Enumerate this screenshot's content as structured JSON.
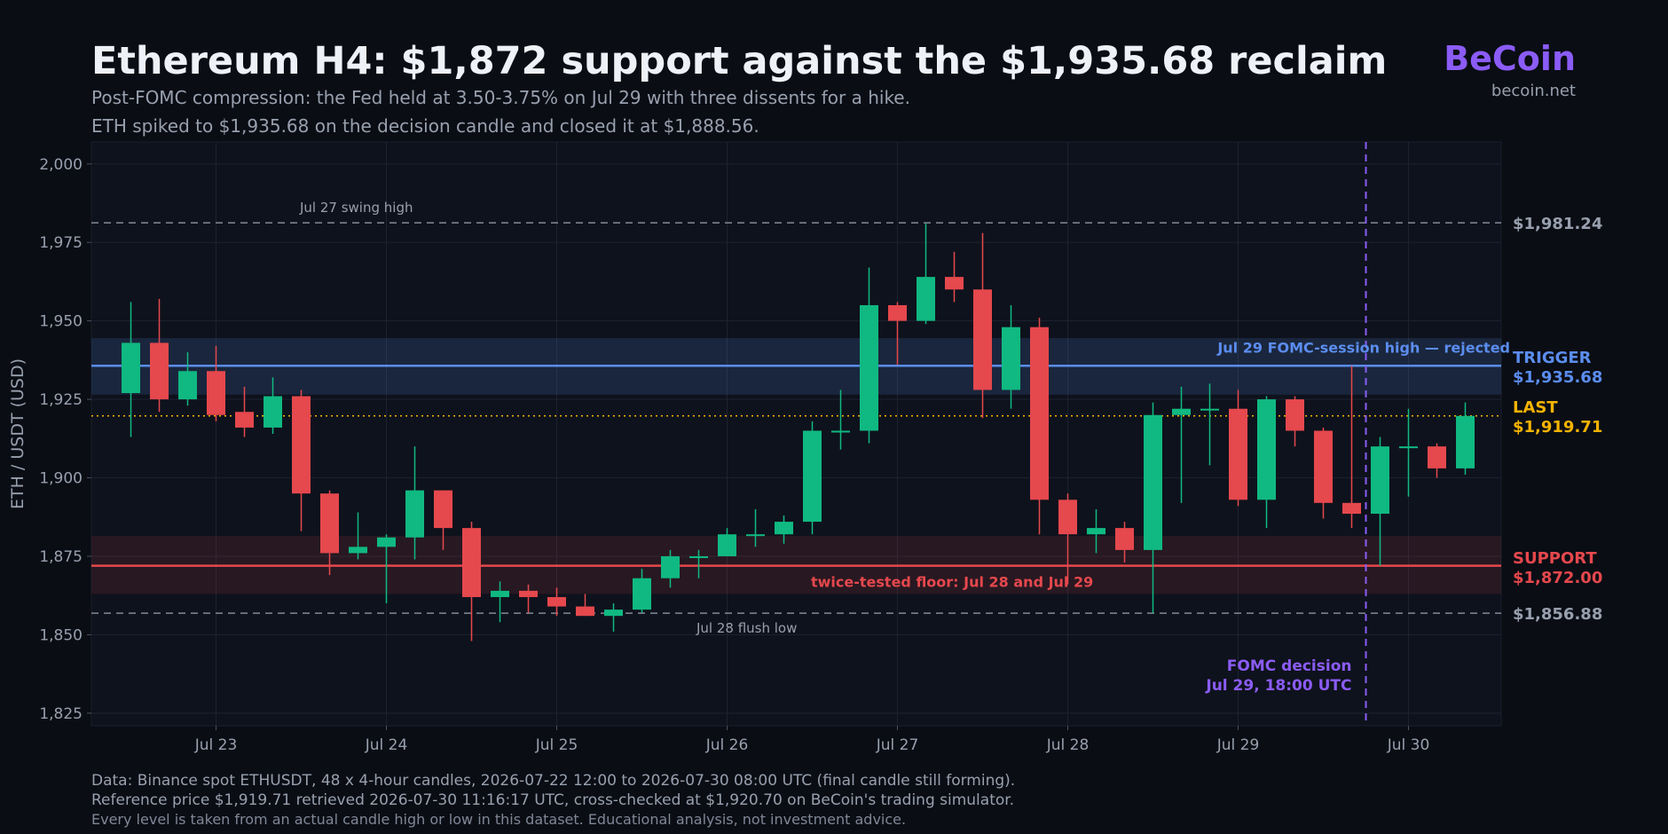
{
  "header": {
    "title": "Ethereum H4: $1,872 support against the $1,935.68 reclaim",
    "subtitle_line1": "Post-FOMC compression: the Fed held at 3.50-3.75% on Jul 29 with three dissents for a hike.",
    "subtitle_line2": "ETH spiked to $1,935.68 on the decision candle and closed it at $1,888.56.",
    "brand": "BeCoin",
    "brand_url": "becoin.net"
  },
  "footer": {
    "line1": "Data: Binance spot ETHUSDT, 48 x 4-hour candles, 2026-07-22 12:00 to 2026-07-30 08:00 UTC (final candle still forming).",
    "line2": "Reference price $1,919.71 retrieved 2026-07-30 11:16:17 UTC, cross-checked at $1,920.70 on BeCoin's trading simulator.",
    "line3": "Every level is taken from an actual candle high or low in this dataset. Educational analysis, not investment advice."
  },
  "colors": {
    "bull": "#10b981",
    "bear": "#e5484d",
    "trigger": "#5b8def",
    "last": "#f5b301",
    "support": "#e5484d",
    "fomc": "#8b5cf6",
    "dashed_level": "#98a0ae"
  },
  "chart_data": {
    "type": "candlestick",
    "ylabel": "ETH / USDT  (USD)",
    "ylim": [
      1821,
      2007
    ],
    "yticks": [
      1825,
      1850,
      1875,
      1900,
      1925,
      1950,
      1975,
      2000
    ],
    "ytick_labels": [
      "1,825",
      "1,850",
      "1,875",
      "1,900",
      "1,925",
      "1,950",
      "1,975",
      "2,000"
    ],
    "x_start": "2026-07-22 12:00",
    "candle_interval_hours": 4,
    "xticks": [
      {
        "index": 3,
        "label": "Jul 23"
      },
      {
        "index": 9,
        "label": "Jul 24"
      },
      {
        "index": 15,
        "label": "Jul 25"
      },
      {
        "index": 21,
        "label": "Jul 26"
      },
      {
        "index": 27,
        "label": "Jul 27"
      },
      {
        "index": 33,
        "label": "Jul 28"
      },
      {
        "index": 39,
        "label": "Jul 29"
      },
      {
        "index": 45,
        "label": "Jul 30"
      }
    ],
    "candles": [
      {
        "o": 1927,
        "h": 1956,
        "l": 1913,
        "c": 1943
      },
      {
        "o": 1943,
        "h": 1957,
        "l": 1921,
        "c": 1925
      },
      {
        "o": 1925,
        "h": 1940,
        "l": 1923,
        "c": 1934
      },
      {
        "o": 1934,
        "h": 1942,
        "l": 1918,
        "c": 1920
      },
      {
        "o": 1921,
        "h": 1929,
        "l": 1913,
        "c": 1916
      },
      {
        "o": 1916,
        "h": 1932,
        "l": 1914,
        "c": 1926
      },
      {
        "o": 1926,
        "h": 1928,
        "l": 1883,
        "c": 1895
      },
      {
        "o": 1895,
        "h": 1896,
        "l": 1869,
        "c": 1876
      },
      {
        "o": 1876,
        "h": 1889,
        "l": 1874,
        "c": 1878
      },
      {
        "o": 1878,
        "h": 1882,
        "l": 1860,
        "c": 1881
      },
      {
        "o": 1881,
        "h": 1910,
        "l": 1874,
        "c": 1896
      },
      {
        "o": 1896,
        "h": 1896,
        "l": 1877,
        "c": 1884
      },
      {
        "o": 1884,
        "h": 1886,
        "l": 1848,
        "c": 1862
      },
      {
        "o": 1862,
        "h": 1867,
        "l": 1854,
        "c": 1864
      },
      {
        "o": 1864,
        "h": 1866,
        "l": 1857,
        "c": 1862
      },
      {
        "o": 1862,
        "h": 1865,
        "l": 1856,
        "c": 1859
      },
      {
        "o": 1859,
        "h": 1863,
        "l": 1856,
        "c": 1856
      },
      {
        "o": 1856,
        "h": 1860,
        "l": 1851,
        "c": 1858
      },
      {
        "o": 1858,
        "h": 1871,
        "l": 1857,
        "c": 1868
      },
      {
        "o": 1868,
        "h": 1877,
        "l": 1865,
        "c": 1875
      },
      {
        "o": 1875,
        "h": 1877,
        "l": 1868,
        "c": 1875
      },
      {
        "o": 1875,
        "h": 1884,
        "l": 1875,
        "c": 1882
      },
      {
        "o": 1882,
        "h": 1890,
        "l": 1878,
        "c": 1882
      },
      {
        "o": 1882,
        "h": 1888,
        "l": 1879,
        "c": 1886
      },
      {
        "o": 1886,
        "h": 1918,
        "l": 1882,
        "c": 1915
      },
      {
        "o": 1915,
        "h": 1928,
        "l": 1909,
        "c": 1915
      },
      {
        "o": 1915,
        "h": 1967,
        "l": 1911,
        "c": 1955
      },
      {
        "o": 1955,
        "h": 1956,
        "l": 1936,
        "c": 1950
      },
      {
        "o": 1950,
        "h": 1981,
        "l": 1949,
        "c": 1964
      },
      {
        "o": 1964,
        "h": 1972,
        "l": 1956,
        "c": 1960
      },
      {
        "o": 1960,
        "h": 1978,
        "l": 1919,
        "c": 1928
      },
      {
        "o": 1928,
        "h": 1955,
        "l": 1922,
        "c": 1948
      },
      {
        "o": 1948,
        "h": 1951,
        "l": 1882,
        "c": 1893
      },
      {
        "o": 1893,
        "h": 1895,
        "l": 1866,
        "c": 1882
      },
      {
        "o": 1882,
        "h": 1890,
        "l": 1876,
        "c": 1884
      },
      {
        "o": 1884,
        "h": 1886,
        "l": 1873,
        "c": 1877
      },
      {
        "o": 1877,
        "h": 1924,
        "l": 1857,
        "c": 1920
      },
      {
        "o": 1920,
        "h": 1929,
        "l": 1892,
        "c": 1922
      },
      {
        "o": 1922,
        "h": 1930,
        "l": 1904,
        "c": 1922
      },
      {
        "o": 1922,
        "h": 1928,
        "l": 1891,
        "c": 1893
      },
      {
        "o": 1893,
        "h": 1926,
        "l": 1884,
        "c": 1925
      },
      {
        "o": 1925,
        "h": 1926,
        "l": 1910,
        "c": 1915
      },
      {
        "o": 1915,
        "h": 1916,
        "l": 1887,
        "c": 1892
      },
      {
        "o": 1892,
        "h": 1935.68,
        "l": 1884,
        "c": 1888.56
      },
      {
        "o": 1888.56,
        "h": 1913,
        "l": 1872,
        "c": 1910
      },
      {
        "o": 1910,
        "h": 1922,
        "l": 1894,
        "c": 1910
      },
      {
        "o": 1910,
        "h": 1911,
        "l": 1900,
        "c": 1903
      },
      {
        "o": 1903,
        "h": 1924,
        "l": 1901,
        "c": 1919.71
      }
    ],
    "levels": {
      "swing_high": {
        "value": 1981.24,
        "label": "$1,981.24",
        "note": "Jul 27 swing high"
      },
      "trigger": {
        "value": 1935.68,
        "tag": "TRIGGER",
        "label": "$1,935.68",
        "note": "Jul 29 FOMC-session high — rejected",
        "zone": [
          1926.5,
          1944.5
        ]
      },
      "last": {
        "value": 1919.71,
        "tag": "LAST",
        "label": "$1,919.71"
      },
      "support": {
        "value": 1872.0,
        "tag": "SUPPORT",
        "label": "$1,872.00",
        "note": "twice-tested floor: Jul 28 and Jul 29",
        "zone": [
          1863,
          1881.5
        ]
      },
      "flush_low": {
        "value": 1856.88,
        "label": "$1,856.88",
        "note": "Jul 28 flush low"
      }
    },
    "fomc": {
      "index": 43,
      "line1": "FOMC decision",
      "line2": "Jul 29, 18:00 UTC"
    }
  }
}
